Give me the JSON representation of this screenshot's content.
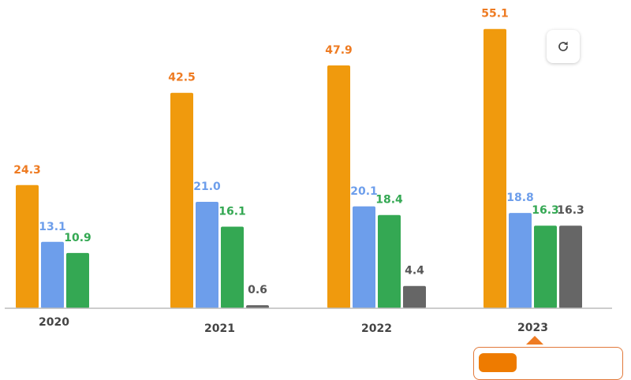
{
  "chart_data": {
    "type": "bar",
    "categories": [
      "2020",
      "2021",
      "2022",
      "2023"
    ],
    "series": [
      {
        "values": [
          24.3,
          42.5,
          47.9,
          55.1
        ],
        "color": "#f09a0d",
        "label_color": "#ee7b22"
      },
      {
        "values": [
          13.1,
          21.0,
          20.1,
          18.8
        ],
        "color": "#6d9eeb",
        "label_color": "#6d9eeb"
      },
      {
        "values": [
          10.9,
          16.1,
          18.4,
          16.3
        ],
        "color": "#34a853",
        "label_color": "#34a853"
      },
      {
        "values": [
          null,
          0.6,
          4.4,
          16.3
        ],
        "color": "#666666",
        "label_color": "#555555"
      }
    ],
    "value_labels": [
      [
        "24.3",
        "42.5",
        "47.9",
        "55.1"
      ],
      [
        "13.1",
        "21.0",
        "20.1",
        "18.8"
      ],
      [
        "10.9",
        "16.1",
        "18.4",
        "16.3"
      ],
      [
        "",
        "0.6",
        "4.4",
        "16.3"
      ]
    ],
    "ylim": [
      0,
      56
    ],
    "grid": false,
    "title": "",
    "xlabel": "",
    "ylabel": ""
  },
  "highlighted_category": "2023",
  "refresh_icon": "refresh-icon",
  "tooltip": {
    "border_color": "#e2793a",
    "swatch_color": "#ee7b00"
  }
}
